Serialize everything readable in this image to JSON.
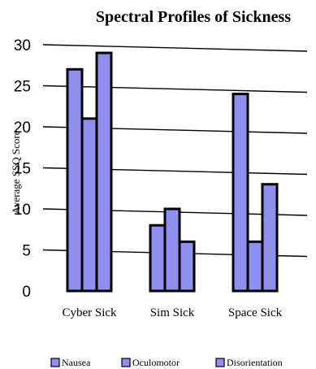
{
  "chart_data": {
    "type": "bar",
    "title": "Spectral Profiles of Sickness",
    "xlabel": "",
    "ylabel": "Average SSQ Score",
    "categories": [
      "Cyber Sick",
      "Sim Sick",
      "Space Sick"
    ],
    "series": [
      {
        "name": "Nausea",
        "values": [
          27,
          8,
          24
        ],
        "color": "#8f8ff0"
      },
      {
        "name": "Oculomotor",
        "values": [
          21,
          10,
          6
        ],
        "color": "#8f8ff0"
      },
      {
        "name": "Disorientation",
        "values": [
          29,
          6,
          13
        ],
        "color": "#8f8ff0"
      }
    ],
    "ylim": [
      0,
      30
    ],
    "yticks": [
      0,
      5,
      10,
      15,
      20,
      25,
      30
    ],
    "grid": true,
    "legend": "bottom",
    "colors": {
      "bar": "#8f8ff0",
      "bar_stroke": "#000000",
      "grid": "#000000"
    }
  }
}
